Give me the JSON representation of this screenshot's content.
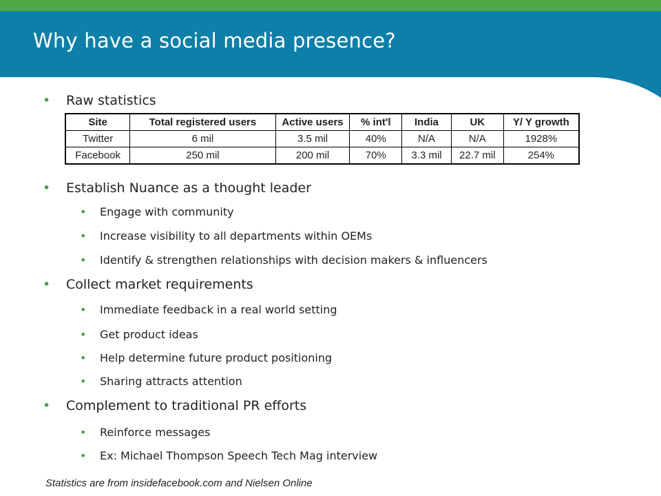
{
  "slide": {
    "title": "Why have a social media presence?",
    "colors": {
      "header_blue": "#0e7fa8",
      "header_green": "#4faa45",
      "bullet_green": "#3fa341"
    }
  },
  "bullets": [
    {
      "level": 1,
      "text": "Raw statistics"
    },
    {
      "level": 1,
      "text": "Establish Nuance as a thought leader"
    },
    {
      "level": 2,
      "text": "Engage with community"
    },
    {
      "level": 2,
      "text": "Increase visibility to all departments within OEMs"
    },
    {
      "level": 2,
      "text": "Identify & strengthen relationships with decision makers & influencers"
    },
    {
      "level": 1,
      "text": "Collect market requirements"
    },
    {
      "level": 2,
      "text": "Immediate feedback in a real world setting"
    },
    {
      "level": 2,
      "text": "Get product ideas"
    },
    {
      "level": 2,
      "text": "Help determine future product positioning"
    },
    {
      "level": 2,
      "text": "Sharing attracts attention"
    },
    {
      "level": 1,
      "text": "Complement to traditional PR efforts"
    },
    {
      "level": 2,
      "text": "Reinforce messages"
    },
    {
      "level": 2,
      "text": "Ex: Michael Thompson Speech Tech Mag interview"
    }
  ],
  "table": {
    "headers": [
      "Site",
      "Total registered users",
      "Active users",
      "% int'l",
      "India",
      "UK",
      "Y/ Y growth"
    ],
    "rows": [
      [
        "Twitter",
        "6 mil",
        "3.5 mil",
        "40%",
        "N/A",
        "N/A",
        "1928%"
      ],
      [
        "Facebook",
        "250 mil",
        "200 mil",
        "70%",
        "3.3 mil",
        "22.7 mil",
        "254%"
      ]
    ]
  },
  "footnote": "Statistics are from insidefacebook.com and Nielsen Online"
}
